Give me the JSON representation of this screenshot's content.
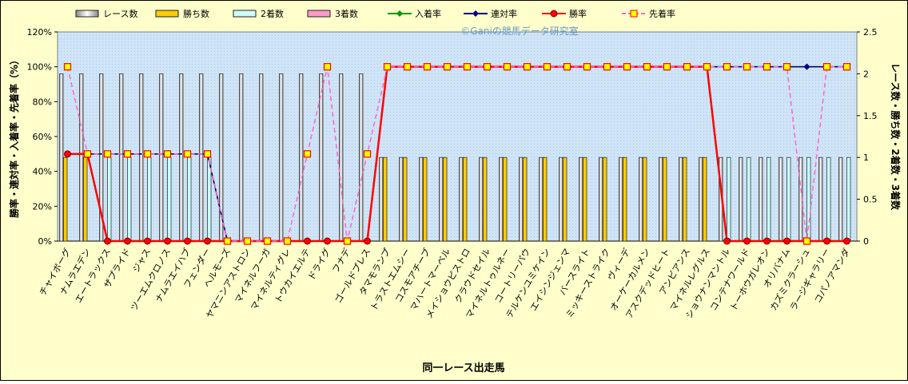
{
  "chart_data": {
    "type": "bar",
    "watermark": "©Ganiの競馬データ研究室",
    "x_label": "同一レース出走馬",
    "y_label": "勝率・連対率・入着率・先着率（%）",
    "y2_label": "レース数・勝ち数・2着数・3着数",
    "categories": [
      "チャイボーグ",
      "ナムラエデン",
      "エートラックス",
      "ザプライド",
      "ジャス",
      "ツーエムクロノス",
      "ナムラエイハブ",
      "フェンダー",
      "ヘルモーズ",
      "ヤマニンアストロン",
      "マイネルフーガ",
      "マイネルティグレ",
      "トウカイエルテ",
      "ドライグ",
      "フナデ",
      "ゴールドプレス",
      "タマモランプ",
      "トラストエムシー",
      "コスモアチーブ",
      "マハートマーベル",
      "メイショウピストロ",
      "クラウドセイル",
      "マイネルトゥルネー",
      "コートリーパウ",
      "テルケンユミケイン",
      "エイシンジェンマ",
      "バースライト",
      "ミッキーストライク",
      "ヴィーデ",
      "オーケーカルメン",
      "アスクデッドヒート",
      "アンビアンス",
      "マイネルレグルス",
      "ショウナンマントル",
      "コンテナワールド",
      "トーホウガレオン",
      "オリバナム",
      "カズミクラーシュ",
      "ラージギャラリー",
      "コパノアマンダ"
    ],
    "ylim": [
      0,
      120
    ],
    "yticks": [
      {
        "value": 0,
        "label": "0%"
      },
      {
        "value": 20,
        "label": "20%"
      },
      {
        "value": 40,
        "label": "40%"
      },
      {
        "value": 60,
        "label": "60%"
      },
      {
        "value": 80,
        "label": "80%"
      },
      {
        "value": 100,
        "label": "100%"
      },
      {
        "value": 120,
        "label": "120%"
      }
    ],
    "y2lim": [
      0,
      2.5
    ],
    "y2ticks": [
      0,
      0.5,
      1,
      1.5,
      2,
      2.5
    ],
    "series": [
      {
        "name": "レース数",
        "type": "bar",
        "axis": "y2",
        "color": "#ffffff",
        "values": [
          2,
          2,
          2,
          2,
          2,
          2,
          2,
          2,
          2,
          2,
          2,
          2,
          2,
          2,
          2,
          2,
          1,
          1,
          1,
          1,
          1,
          1,
          1,
          1,
          1,
          1,
          1,
          1,
          1,
          1,
          1,
          1,
          1,
          1,
          1,
          1,
          1,
          1,
          1,
          1
        ]
      },
      {
        "name": "勝ち数",
        "type": "bar",
        "axis": "y2",
        "color": "#ffcc00",
        "values": [
          1,
          1,
          0,
          0,
          0,
          0,
          0,
          0,
          0,
          0,
          0,
          0,
          0,
          0,
          0,
          0,
          1,
          1,
          1,
          1,
          1,
          1,
          1,
          1,
          1,
          1,
          1,
          1,
          1,
          1,
          1,
          1,
          1,
          0,
          0,
          0,
          0,
          0,
          0,
          0
        ]
      },
      {
        "name": "2着数",
        "type": "bar",
        "axis": "y2",
        "color": "#ccffff",
        "values": [
          0,
          0,
          1,
          1,
          1,
          1,
          1,
          1,
          0,
          0,
          0,
          0,
          0,
          0,
          0,
          0,
          0,
          0,
          0,
          0,
          0,
          0,
          0,
          0,
          0,
          0,
          0,
          0,
          0,
          0,
          0,
          0,
          0,
          1,
          1,
          1,
          1,
          1,
          1,
          1
        ]
      },
      {
        "name": "3着数",
        "type": "bar",
        "axis": "y2",
        "color": "#ff99cc",
        "values": [
          0,
          0,
          0,
          0,
          0,
          0,
          0,
          0,
          0,
          0,
          0,
          0,
          0,
          0,
          0,
          0,
          0,
          0,
          0,
          0,
          0,
          0,
          0,
          0,
          0,
          0,
          0,
          0,
          0,
          0,
          0,
          0,
          0,
          0,
          0,
          0,
          0,
          0,
          0,
          0
        ]
      },
      {
        "name": "入着率",
        "type": "line",
        "color": "#009900",
        "marker": "diamond",
        "values": [
          50,
          50,
          50,
          50,
          50,
          50,
          50,
          50,
          0,
          0,
          0,
          0,
          0,
          0,
          0,
          0,
          100,
          100,
          100,
          100,
          100,
          100,
          100,
          100,
          100,
          100,
          100,
          100,
          100,
          100,
          100,
          100,
          100,
          100,
          100,
          100,
          100,
          100,
          100,
          100
        ]
      },
      {
        "name": "連対率",
        "type": "line",
        "color": "#000080",
        "marker": "diamond",
        "values": [
          50,
          50,
          50,
          50,
          50,
          50,
          50,
          50,
          0,
          0,
          0,
          0,
          0,
          0,
          0,
          0,
          100,
          100,
          100,
          100,
          100,
          100,
          100,
          100,
          100,
          100,
          100,
          100,
          100,
          100,
          100,
          100,
          100,
          100,
          100,
          100,
          100,
          100,
          100,
          100
        ]
      },
      {
        "name": "勝率",
        "type": "line",
        "color": "#ff0000",
        "marker": "circle",
        "values": [
          50,
          50,
          0,
          0,
          0,
          0,
          0,
          0,
          0,
          0,
          0,
          0,
          0,
          0,
          0,
          0,
          100,
          100,
          100,
          100,
          100,
          100,
          100,
          100,
          100,
          100,
          100,
          100,
          100,
          100,
          100,
          100,
          100,
          0,
          0,
          0,
          0,
          0,
          0,
          0
        ]
      },
      {
        "name": "先着率",
        "type": "line",
        "color": "#ff66cc",
        "marker": "square",
        "dashed": true,
        "values": [
          100,
          50,
          50,
          50,
          50,
          50,
          50,
          50,
          0,
          0,
          0,
          0,
          50,
          100,
          0,
          50,
          100,
          100,
          100,
          100,
          100,
          100,
          100,
          100,
          100,
          100,
          100,
          100,
          100,
          100,
          100,
          100,
          100,
          100,
          100,
          100,
          100,
          0,
          100,
          100
        ]
      }
    ]
  }
}
